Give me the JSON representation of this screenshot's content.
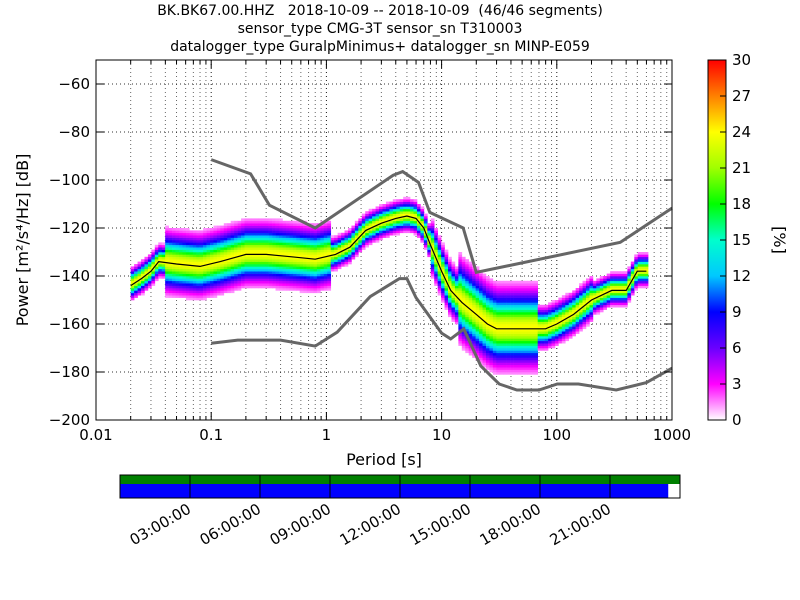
{
  "title_lines": [
    "BK.BK67.00.HHZ   2018-10-09 -- 2018-10-09  (46/46 segments)",
    "sensor_type CMG-3T sensor_sn T310003",
    "datalogger_type GuralpMinimus+ datalogger_sn MINP-E059"
  ],
  "chart_data": {
    "type": "heatmap",
    "xlabel": "Period [s]",
    "ylabel": "Power [m²/s⁴/Hz] [dB]",
    "xscale": "log",
    "xlim": [
      0.01,
      1000
    ],
    "ylim": [
      -200,
      -50
    ],
    "x_tick_labels": [
      "0.01",
      "0.1",
      "1",
      "10",
      "100",
      "1000"
    ],
    "x_ticks": [
      0.01,
      0.1,
      1,
      10,
      100,
      1000
    ],
    "y_ticks": [
      -200,
      -180,
      -160,
      -140,
      -120,
      -100,
      -80,
      -60
    ],
    "y_tick_labels": [
      "−200",
      "−180",
      "−160",
      "−140",
      "−120",
      "−100",
      "−80",
      "−60"
    ],
    "grid": true,
    "colorbar": {
      "label": "[%]",
      "range": [
        0,
        30
      ],
      "ticks": [
        "0",
        "3",
        "6",
        "9",
        "12",
        "15",
        "18",
        "21",
        "24",
        "27",
        "30"
      ]
    },
    "noise_model_high": [
      [
        0.1,
        -91.5
      ],
      [
        0.22,
        -97.4
      ],
      [
        0.32,
        -110.5
      ],
      [
        0.8,
        -120
      ],
      [
        3.8,
        -98
      ],
      [
        4.6,
        -96.5
      ],
      [
        6.3,
        -101
      ],
      [
        7.9,
        -113.5
      ],
      [
        15.4,
        -120
      ],
      [
        20,
        -138.5
      ],
      [
        354.8,
        -126
      ],
      [
        10000,
        -80
      ]
    ],
    "noise_model_low": [
      [
        0.1,
        -168
      ],
      [
        0.17,
        -166.7
      ],
      [
        0.4,
        -166.7
      ],
      [
        0.8,
        -169.2
      ],
      [
        1.24,
        -163.4
      ],
      [
        2.4,
        -148.6
      ],
      [
        4.3,
        -141.1
      ],
      [
        5.0,
        -141.1
      ],
      [
        6.0,
        -149
      ],
      [
        10,
        -163.8
      ],
      [
        12,
        -166.2
      ],
      [
        15.6,
        -162.1
      ],
      [
        21.9,
        -177.5
      ],
      [
        31.6,
        -185
      ],
      [
        45,
        -187.5
      ],
      [
        70,
        -187.5
      ],
      [
        101,
        -185
      ],
      [
        154,
        -185
      ],
      [
        328,
        -187.5
      ],
      [
        600,
        -184.4
      ],
      [
        1000,
        -178.4
      ]
    ],
    "mode_curve": [
      [
        0.02,
        -144
      ],
      [
        0.025,
        -141
      ],
      [
        0.03,
        -138
      ],
      [
        0.035,
        -134
      ],
      [
        0.05,
        -135
      ],
      [
        0.08,
        -136
      ],
      [
        0.12,
        -134
      ],
      [
        0.2,
        -131
      ],
      [
        0.3,
        -131
      ],
      [
        0.5,
        -132
      ],
      [
        0.8,
        -133
      ],
      [
        1.2,
        -131
      ],
      [
        1.6,
        -128
      ],
      [
        2.2,
        -121
      ],
      [
        3,
        -118
      ],
      [
        4,
        -116
      ],
      [
        5,
        -115
      ],
      [
        6,
        -116
      ],
      [
        7,
        -120
      ],
      [
        8,
        -127
      ],
      [
        10,
        -138
      ],
      [
        12,
        -146
      ],
      [
        15,
        -151
      ],
      [
        20,
        -156
      ],
      [
        25,
        -160
      ],
      [
        30,
        -162
      ],
      [
        40,
        -162
      ],
      [
        60,
        -162
      ],
      [
        80,
        -162
      ],
      [
        100,
        -160
      ],
      [
        140,
        -156
      ],
      [
        200,
        -150
      ],
      [
        300,
        -146
      ],
      [
        400,
        -146
      ],
      [
        500,
        -138
      ],
      [
        600,
        -138
      ]
    ],
    "time_axis": {
      "tick_labels": [
        "03:00:00",
        "06:00:00",
        "09:00:00",
        "12:00:00",
        "15:00:00",
        "18:00:00",
        "21:00:00"
      ],
      "coverage_top_color": "#008000",
      "coverage_bottom_color": "#0000ff",
      "coverage_fraction": 0.979
    }
  }
}
